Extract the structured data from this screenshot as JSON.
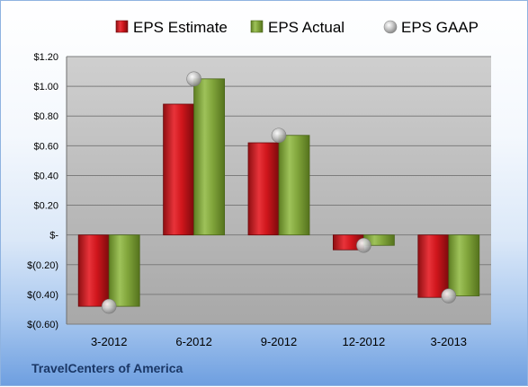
{
  "company": "TravelCenters of America",
  "chart_data": {
    "type": "bar",
    "categories": [
      "3-2012",
      "6-2012",
      "9-2012",
      "12-2012",
      "3-2013"
    ],
    "series": [
      {
        "name": "EPS Estimate",
        "kind": "bar",
        "color": "#c8151b",
        "values": [
          -0.48,
          0.88,
          0.62,
          -0.1,
          -0.42
        ]
      },
      {
        "name": "EPS Actual",
        "kind": "bar",
        "color": "#7fa33b",
        "values": [
          -0.48,
          1.05,
          0.67,
          -0.07,
          -0.41
        ]
      },
      {
        "name": "EPS GAAP",
        "kind": "marker",
        "color": "#b8b8b8",
        "values": [
          -0.48,
          1.05,
          0.67,
          -0.07,
          -0.41
        ]
      }
    ],
    "ylim": [
      -0.6,
      1.2
    ],
    "yticks": [
      1.2,
      1.0,
      0.8,
      0.6,
      0.4,
      0.2,
      0.0,
      -0.2,
      -0.4,
      -0.6
    ],
    "ytick_labels": [
      "$1.20",
      "$1.00",
      "$0.80",
      "$0.60",
      "$0.40",
      "$0.20",
      "$-",
      "$(0.20)",
      "$(0.40)",
      "$(0.60)"
    ],
    "legend_position": "top",
    "grid": true
  }
}
